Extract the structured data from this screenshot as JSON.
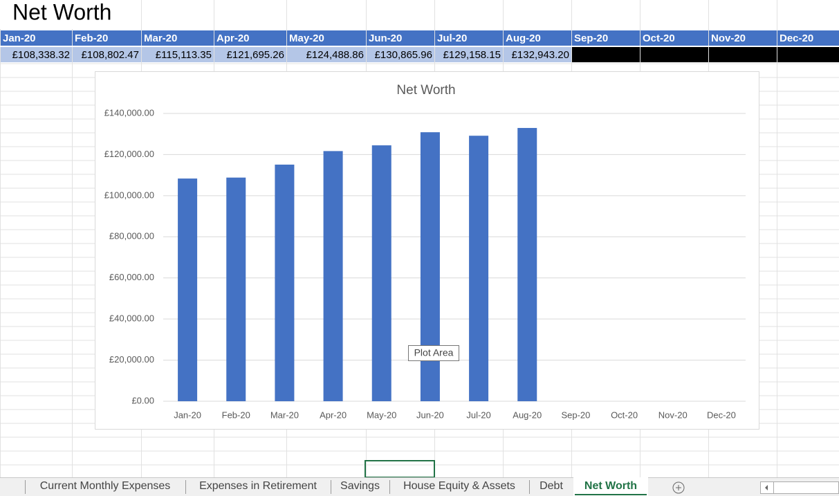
{
  "sheet": {
    "title": "Net Worth",
    "table": {
      "headers": [
        "Jan-20",
        "Feb-20",
        "Mar-20",
        "Apr-20",
        "May-20",
        "Jun-20",
        "Jul-20",
        "Aug-20",
        "Sep-20",
        "Oct-20",
        "Nov-20",
        "Dec-20"
      ],
      "values": [
        "£108,338.32",
        "£108,802.47",
        "£115,113.35",
        "£121,695.26",
        "£124,488.86",
        "£130,865.96",
        "£129,158.15",
        "£132,943.20"
      ]
    }
  },
  "chart_data": {
    "type": "bar",
    "title": "Net Worth",
    "categories": [
      "Jan-20",
      "Feb-20",
      "Mar-20",
      "Apr-20",
      "May-20",
      "Jun-20",
      "Jul-20",
      "Aug-20",
      "Sep-20",
      "Oct-20",
      "Nov-20",
      "Dec-20"
    ],
    "values": [
      108338.32,
      108802.47,
      115113.35,
      121695.26,
      124488.86,
      130865.96,
      129158.15,
      132943.2,
      null,
      null,
      null,
      null
    ],
    "color": "#4472c4",
    "ylim": [
      0,
      140000
    ],
    "yticks": [
      {
        "value": 0,
        "label": "£0.00"
      },
      {
        "value": 20000,
        "label": "£20,000.00"
      },
      {
        "value": 40000,
        "label": "£40,000.00"
      },
      {
        "value": 60000,
        "label": "£60,000.00"
      },
      {
        "value": 80000,
        "label": "£80,000.00"
      },
      {
        "value": 100000,
        "label": "£100,000.00"
      },
      {
        "value": 120000,
        "label": "£120,000.00"
      },
      {
        "value": 140000,
        "label": "£140,000.00"
      }
    ],
    "grid": true
  },
  "tooltip": "Plot Area",
  "tabs": [
    "Current Monthly Expenses",
    "Expenses in Retirement",
    "Savings",
    "House Equity & Assets",
    "Debt",
    "Net Worth"
  ]
}
